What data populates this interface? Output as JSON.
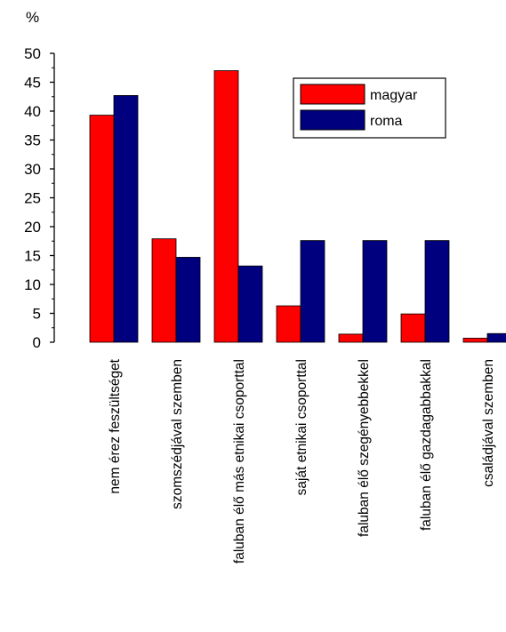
{
  "chart_data": {
    "type": "bar",
    "ylabel": "%",
    "ylim": [
      0,
      50
    ],
    "yticks": [
      0,
      5,
      10,
      15,
      20,
      25,
      30,
      35,
      40,
      45,
      50
    ],
    "grid": false,
    "legend_position": "top-right",
    "categories": [
      "nem érez feszültséget",
      "szomszédjával szemben",
      "faluban élő más etnikai csoporttal",
      "saját etnikai csoporttal",
      "faluban élő szegényebbekkel",
      "faluban élő gazdagabbakkal",
      "családjával szemben"
    ],
    "series": [
      {
        "name": "magyar",
        "color": "#ff0000",
        "values": [
          39.3,
          17.9,
          47.0,
          6.3,
          1.4,
          4.9,
          0.7
        ]
      },
      {
        "name": "roma",
        "color": "#00007f",
        "values": [
          42.7,
          14.7,
          13.2,
          17.6,
          17.6,
          17.6,
          1.5
        ]
      }
    ]
  }
}
